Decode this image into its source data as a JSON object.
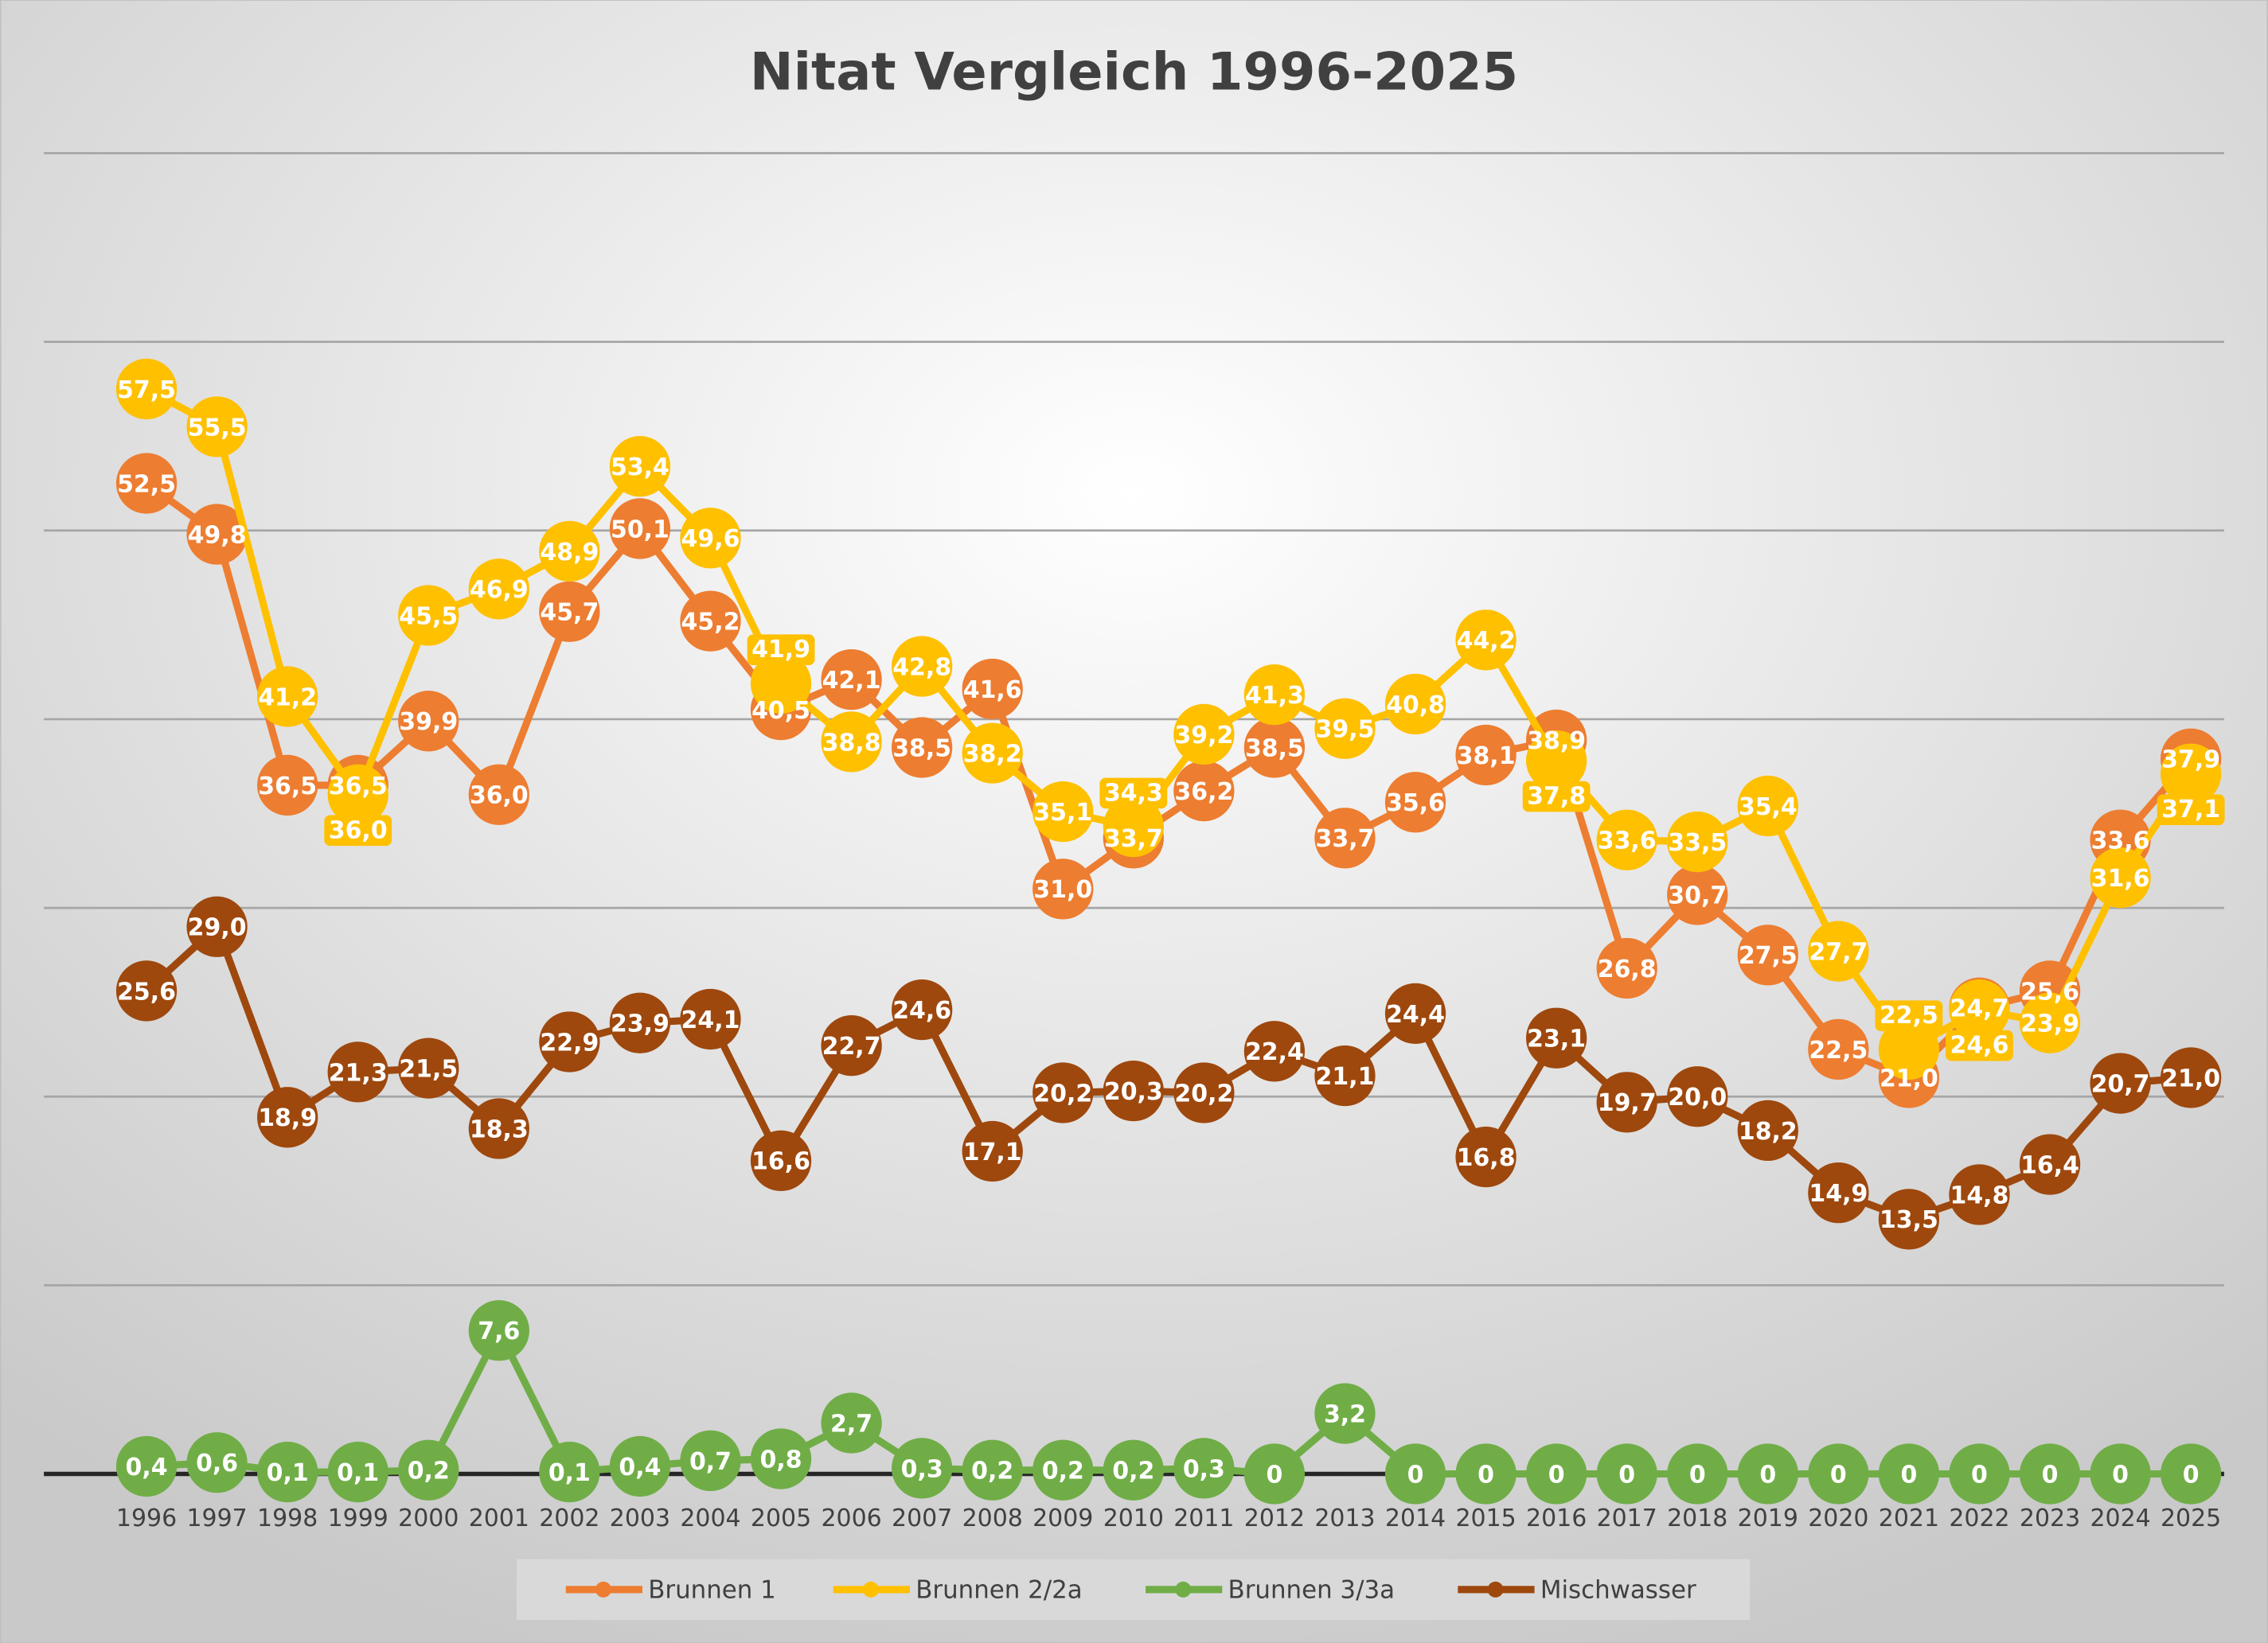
{
  "chart_data": {
    "type": "line",
    "title": "Nitat Vergleich 1996-2025",
    "xlabel": "",
    "ylabel": "",
    "ylim": [
      0,
      70
    ],
    "grid": true,
    "legend": "bottom",
    "categories": [
      "1996",
      "1997",
      "1998",
      "1999",
      "2000",
      "2001",
      "2002",
      "2003",
      "2004",
      "2005",
      "2006",
      "2007",
      "2008",
      "2009",
      "2010",
      "2011",
      "2012",
      "2013",
      "2014",
      "2015",
      "2016",
      "2017",
      "2018",
      "2019",
      "2020",
      "2021",
      "2022",
      "2023",
      "2024",
      "2025"
    ],
    "series": [
      {
        "name": "Brunnen 1",
        "color": "#ED7D31",
        "values": [
          52.5,
          49.8,
          36.5,
          36.5,
          39.9,
          36.0,
          45.7,
          50.1,
          45.2,
          40.5,
          42.1,
          38.5,
          41.6,
          31.0,
          33.7,
          36.2,
          38.5,
          33.7,
          35.6,
          38.1,
          38.9,
          26.8,
          30.7,
          27.5,
          22.5,
          21.0,
          24.7,
          25.6,
          33.6,
          37.9
        ],
        "labels": [
          "52,5",
          "49,8",
          "36,5",
          "36,5",
          "39,9",
          "36,0",
          "45,7",
          "50,1",
          "45,2",
          "40,5",
          "42,1",
          "38,5",
          "41,6",
          "31,0",
          "33,7",
          "36,2",
          "38,5",
          "33,7",
          "35,6",
          "38,1",
          "38,9",
          "26,8",
          "30,7",
          "27,5",
          "22,5",
          "21,0",
          "24,7",
          "25,6",
          "33,6",
          "37,9"
        ]
      },
      {
        "name": "Brunnen 2/2a",
        "color": "#FFC000",
        "values": [
          57.5,
          55.5,
          41.2,
          36.0,
          45.5,
          46.9,
          48.9,
          53.4,
          49.6,
          41.9,
          38.8,
          42.8,
          38.2,
          35.1,
          34.3,
          39.2,
          41.3,
          39.5,
          40.8,
          44.2,
          37.8,
          33.6,
          33.5,
          35.4,
          27.7,
          22.5,
          24.6,
          23.9,
          31.6,
          37.1
        ],
        "labels": [
          "57,5",
          "55,5",
          "41,2",
          "36,0",
          "45,5",
          "46,9",
          "48,9",
          "53,4",
          "49,6",
          "41,9",
          "38,8",
          "42,8",
          "38,2",
          "35,1",
          "34,3",
          "39,2",
          "41,3",
          "39,5",
          "40,8",
          "44,2",
          "37,8",
          "33,6",
          "33,5",
          "35,4",
          "27,7",
          "22,5",
          "24,6",
          "23,9",
          "31,6",
          "37,1"
        ]
      },
      {
        "name": "Brunnen 3/3a",
        "color": "#70AD47",
        "values": [
          0.4,
          0.6,
          0.1,
          0.1,
          0.2,
          7.6,
          0.1,
          0.4,
          0.7,
          0.8,
          2.7,
          0.3,
          0.2,
          0.2,
          0.2,
          0.3,
          0,
          3.2,
          0,
          0,
          0,
          0,
          0,
          0,
          0,
          0,
          0,
          0,
          0,
          0
        ],
        "labels": [
          "0,4",
          "0,6",
          "0,1",
          "0,1",
          "0,2",
          "7,6",
          "0,1",
          "0,4",
          "0,7",
          "0,8",
          "2,7",
          "0,3",
          "0,2",
          "0,2",
          "0,2",
          "0,3",
          "0",
          "3,2",
          "0",
          "0",
          "0",
          "0",
          "0",
          "0",
          "0",
          "0",
          "0",
          "0",
          "0",
          "0"
        ]
      },
      {
        "name": "Mischwasser",
        "color": "#9E480E",
        "values": [
          25.6,
          29.0,
          18.9,
          21.3,
          21.5,
          18.3,
          22.9,
          23.9,
          24.1,
          16.6,
          22.7,
          24.6,
          17.1,
          20.2,
          20.3,
          20.2,
          22.4,
          21.1,
          24.4,
          16.8,
          23.1,
          19.7,
          20.0,
          18.2,
          14.9,
          13.5,
          14.8,
          16.4,
          20.7,
          21.0
        ],
        "labels": [
          "25,6",
          "29,0",
          "18,9",
          "21,3",
          "21,5",
          "18,3",
          "22,9",
          "23,9",
          "24,1",
          "16,6",
          "22,7",
          "24,6",
          "17,1",
          "20,2",
          "20,3",
          "20,2",
          "22,4",
          "21,1",
          "24,4",
          "16,8",
          "23,1",
          "19,7",
          "20,0",
          "18,2",
          "14,9",
          "13,5",
          "14,8",
          "16,4",
          "20,7",
          "21,0"
        ]
      }
    ]
  }
}
